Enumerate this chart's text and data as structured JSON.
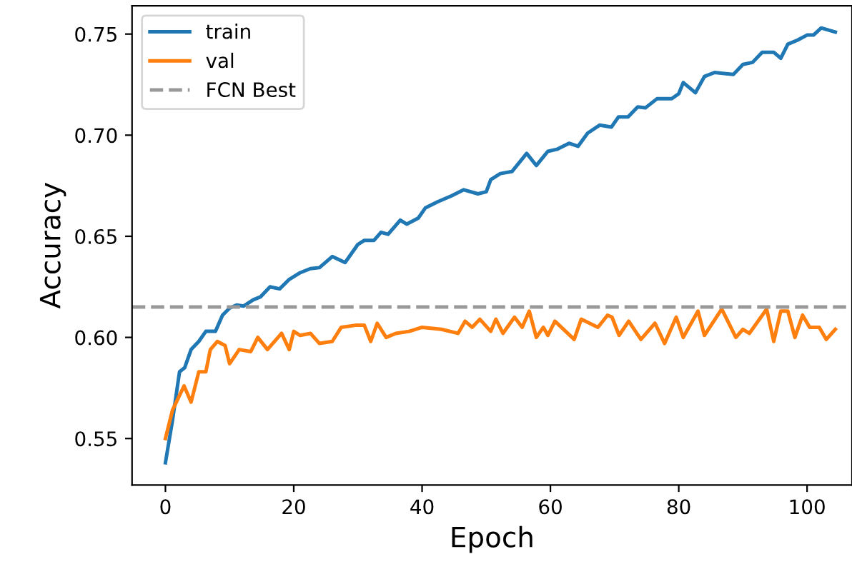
{
  "chart_data": {
    "type": "line",
    "xlabel": "Epoch",
    "ylabel": "Accuracy",
    "xlim": [
      -5.2,
      107
    ],
    "ylim": [
      0.527,
      0.764
    ],
    "xticks": [
      0,
      20,
      40,
      60,
      80,
      100
    ],
    "yticks": [
      0.55,
      {
        "value": 0.6,
        "label": "0.60"
      },
      0.65,
      {
        "value": 0.7,
        "label": "0.70"
      },
      0.75
    ],
    "legend": "top left",
    "grid": false,
    "line_style": "solid",
    "series": [
      {
        "name": "train",
        "color": "#1f77b4",
        "x": [
          0,
          1.1,
          2.2,
          3,
          4,
          5.2,
          6.3,
          7.8,
          8.9,
          10,
          11.1,
          12.2,
          13.7,
          14.8,
          16.3,
          17.8,
          19.3,
          21,
          22.6,
          24,
          26,
          28,
          30,
          31,
          32.5,
          33.6,
          34.7,
          36.6,
          37.6,
          39.4,
          40.5,
          42.4,
          44.6,
          46.5,
          48.7,
          50,
          50.7,
          52.2,
          54,
          56.3,
          57.8,
          59.6,
          61,
          62.9,
          64.3,
          65.8,
          67.7,
          69.5,
          70.6,
          72.1,
          73.6,
          74.8,
          76.6,
          78.9,
          80,
          80.7,
          82.6,
          84,
          85.6,
          88.5,
          90,
          91.5,
          93,
          94.8,
          95.9,
          97,
          98.5,
          100,
          101,
          102.2,
          104.4
        ],
        "values": [
          0.538,
          0.559,
          0.583,
          0.585,
          0.594,
          0.598,
          0.603,
          0.603,
          0.611,
          0.6145,
          0.616,
          0.6155,
          0.6186,
          0.62,
          0.625,
          0.624,
          0.6287,
          0.632,
          0.634,
          0.6345,
          0.64,
          0.637,
          0.646,
          0.648,
          0.648,
          0.652,
          0.651,
          0.658,
          0.656,
          0.659,
          0.664,
          0.667,
          0.67,
          0.673,
          0.671,
          0.672,
          0.678,
          0.681,
          0.682,
          0.691,
          0.685,
          0.692,
          0.693,
          0.696,
          0.6945,
          0.701,
          0.705,
          0.704,
          0.709,
          0.709,
          0.714,
          0.7135,
          0.718,
          0.718,
          0.7205,
          0.726,
          0.721,
          0.729,
          0.731,
          0.73,
          0.735,
          0.736,
          0.741,
          0.741,
          0.738,
          0.745,
          0.747,
          0.7495,
          0.7495,
          0.753,
          0.751
        ]
      },
      {
        "name": "val",
        "color": "#ff7f0e",
        "x": [
          0,
          1.1,
          2.9,
          4,
          5.2,
          6.3,
          7,
          8.1,
          9.3,
          10,
          11.5,
          13.3,
          14.4,
          15.9,
          18.1,
          19.3,
          20,
          21,
          22.6,
          24,
          26,
          27.4,
          29.6,
          31,
          32,
          33,
          34.4,
          35.9,
          38,
          40,
          43,
          45.6,
          46.7,
          47.8,
          49,
          50.7,
          51.5,
          52.6,
          54.4,
          55.6,
          56.7,
          57.8,
          58.9,
          59.6,
          60.7,
          63.7,
          64.8,
          67.4,
          68.9,
          69.6,
          70.7,
          72.2,
          74.1,
          76.3,
          77.8,
          79.6,
          80.7,
          83,
          84,
          86.7,
          88.9,
          90,
          91,
          93.7,
          94.8,
          95.9,
          97,
          98.1,
          99.3,
          100.4,
          101.9,
          103,
          104.4
        ],
        "values": [
          0.55,
          0.564,
          0.576,
          0.568,
          0.583,
          0.583,
          0.594,
          0.598,
          0.596,
          0.587,
          0.594,
          0.593,
          0.6,
          0.594,
          0.602,
          0.594,
          0.603,
          0.601,
          0.602,
          0.597,
          0.598,
          0.605,
          0.606,
          0.606,
          0.598,
          0.607,
          0.6,
          0.602,
          0.603,
          0.605,
          0.604,
          0.602,
          0.608,
          0.605,
          0.609,
          0.603,
          0.609,
          0.602,
          0.61,
          0.605,
          0.613,
          0.6,
          0.605,
          0.601,
          0.608,
          0.599,
          0.609,
          0.605,
          0.611,
          0.61,
          0.601,
          0.608,
          0.599,
          0.607,
          0.597,
          0.61,
          0.6,
          0.613,
          0.601,
          0.614,
          0.6,
          0.604,
          0.602,
          0.614,
          0.598,
          0.613,
          0.613,
          0.6,
          0.611,
          0.605,
          0.605,
          0.599,
          0.604
        ]
      }
    ],
    "ref_lines": [
      {
        "axis": "y",
        "value": 0.615,
        "label": "FCN Best",
        "color": "#999999",
        "line_style": "dashed"
      }
    ]
  }
}
